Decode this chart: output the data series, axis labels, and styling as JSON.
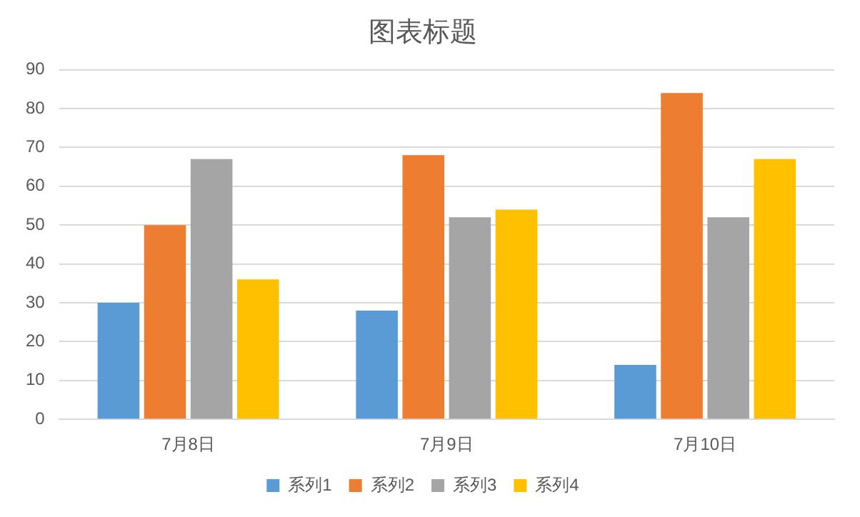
{
  "chart_data": {
    "type": "bar",
    "title": "图表标题",
    "categories": [
      "7月8日",
      "7月9日",
      "7月10日"
    ],
    "series": [
      {
        "name": "系列1",
        "color": "#5b9bd5",
        "values": [
          30,
          28,
          14
        ]
      },
      {
        "name": "系列2",
        "color": "#ed7d31",
        "values": [
          50,
          68,
          84
        ]
      },
      {
        "name": "系列3",
        "color": "#a5a5a5",
        "values": [
          67,
          52,
          52
        ]
      },
      {
        "name": "系列4",
        "color": "#ffc000",
        "values": [
          36,
          54,
          67
        ]
      }
    ],
    "ylim": [
      0,
      90
    ],
    "yticks": [
      0,
      10,
      20,
      30,
      40,
      50,
      60,
      70,
      80,
      90
    ],
    "grid": "y",
    "legend": "bottom"
  }
}
